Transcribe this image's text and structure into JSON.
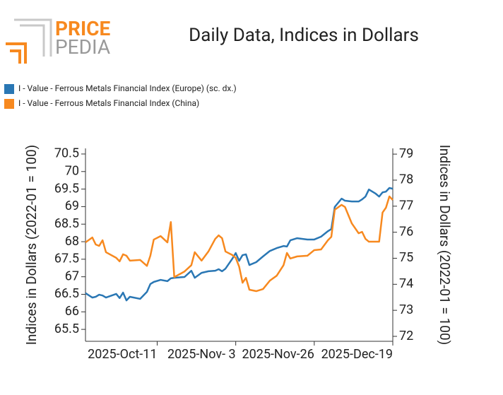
{
  "logo": {
    "top": "PRICE",
    "bottom": "PEDIA"
  },
  "chart_data": {
    "type": "line",
    "title": "Daily Data, Indices in Dollars",
    "legend": "top-left",
    "ylabel": "Indices in Dollars (2022-01 = 100)",
    "y2label": "Indices in Dollars (2022-01 = 100)",
    "x": [
      "2025-09-20",
      "2025-09-22",
      "2025-09-23",
      "2025-09-24",
      "2025-09-25",
      "2025-09-26",
      "2025-09-29",
      "2025-09-30",
      "2025-10-01",
      "2025-10-02",
      "2025-10-03",
      "2025-10-06",
      "2025-10-08",
      "2025-10-09",
      "2025-10-10",
      "2025-10-12",
      "2025-10-14",
      "2025-10-15",
      "2025-10-16",
      "2025-10-19",
      "2025-10-21",
      "2025-10-22",
      "2025-10-24",
      "2025-10-26",
      "2025-10-28",
      "2025-10-29",
      "2025-10-30",
      "2025-10-31",
      "2025-11-02",
      "2025-11-03",
      "2025-11-04",
      "2025-11-05",
      "2025-11-06",
      "2025-11-07",
      "2025-11-09",
      "2025-11-11",
      "2025-11-13",
      "2025-11-15",
      "2025-11-17",
      "2025-11-18",
      "2025-11-19",
      "2025-11-21",
      "2025-11-24",
      "2025-11-26",
      "2025-11-28",
      "2025-11-30",
      "2025-12-01",
      "2025-12-02",
      "2025-12-04",
      "2025-12-05",
      "2025-12-07",
      "2025-12-09",
      "2025-12-10",
      "2025-12-11",
      "2025-12-12",
      "2025-12-14",
      "2025-12-15",
      "2025-12-16",
      "2025-12-17",
      "2025-12-18",
      "2025-12-19"
    ],
    "xlim": [
      "2025-09-20",
      "2025-12-19"
    ],
    "xticks": [
      {
        "value": "2025-10-11",
        "label": "2025-Oct-11"
      },
      {
        "value": "2025-11-03",
        "label": "2025-Nov- 3"
      },
      {
        "value": "2025-11-26",
        "label": "2025-Nov-26"
      },
      {
        "value": "2025-12-19",
        "label": "2025-Dec-19"
      }
    ],
    "ylim": [
      65.16,
      70.66
    ],
    "yticks": [
      65.5,
      66,
      66.5,
      67,
      67.5,
      68,
      68.5,
      69,
      69.5,
      70,
      70.5
    ],
    "y2lim": [
      71.81,
      79.22
    ],
    "y2ticks": [
      72,
      73,
      74,
      75,
      76,
      77,
      78,
      79
    ],
    "series": [
      {
        "name": "I - Value - Ferrous Metals Financial Index (Europe) (sc. dx.)",
        "color": "#2a77b4",
        "axis": "y2",
        "values": [
          73.66,
          73.49,
          73.52,
          73.6,
          73.57,
          73.49,
          73.63,
          73.47,
          73.68,
          73.38,
          73.52,
          73.44,
          73.71,
          74.01,
          74.09,
          74.17,
          74.12,
          74.23,
          74.25,
          74.28,
          74.52,
          74.25,
          74.44,
          74.5,
          74.52,
          74.58,
          74.5,
          74.6,
          74.98,
          75.2,
          74.9,
          75.12,
          75.15,
          74.74,
          74.85,
          75.07,
          75.28,
          75.39,
          75.47,
          75.45,
          75.69,
          75.77,
          75.72,
          75.72,
          75.83,
          76.04,
          76.12,
          76.97,
          77.29,
          77.21,
          77.18,
          77.18,
          77.26,
          77.37,
          77.64,
          77.48,
          77.37,
          77.53,
          77.56,
          77.7,
          77.67
        ]
      },
      {
        "name": "I - Value - Ferrous Metals Financial Index (China)",
        "color": "#f7891f",
        "values": [
          67.98,
          68.12,
          67.92,
          67.88,
          68.04,
          67.7,
          67.54,
          67.44,
          67.64,
          67.6,
          67.46,
          67.48,
          67.31,
          67.6,
          68.06,
          68.16,
          67.98,
          68.56,
          66.99,
          67.15,
          67.33,
          67.7,
          67.46,
          67.72,
          68.08,
          68.18,
          68.1,
          67.72,
          67.62,
          67.54,
          67.29,
          66.83,
          66.97,
          66.63,
          66.59,
          66.65,
          66.89,
          67.03,
          67.33,
          67.68,
          67.52,
          67.58,
          67.6,
          67.76,
          67.78,
          68.04,
          68.14,
          68.91,
          69.05,
          68.99,
          68.52,
          68.24,
          68.28,
          68.08,
          68,
          68,
          68,
          68.83,
          68.97,
          69.29,
          69.19
        ]
      }
    ]
  }
}
